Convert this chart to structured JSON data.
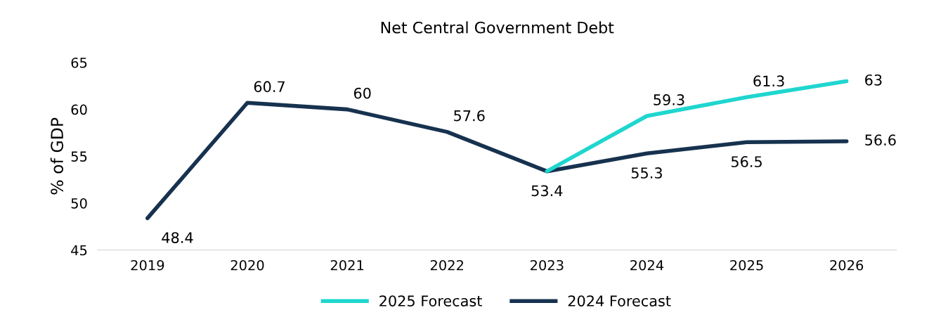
{
  "chart_data": {
    "type": "line",
    "title": "Net Central Government Debt",
    "ylabel": "% of GDP",
    "categories": [
      "2019",
      "2020",
      "2021",
      "2022",
      "2023",
      "2024",
      "2025",
      "2026"
    ],
    "series": [
      {
        "name": "2025 Forecast",
        "color": "#1fd6cf",
        "values": [
          null,
          null,
          null,
          null,
          53.4,
          59.3,
          61.3,
          63
        ],
        "value_labels": [
          null,
          null,
          null,
          null,
          null,
          "59.3",
          "61.3",
          "63"
        ]
      },
      {
        "name": "2024 Forecast",
        "color": "#17324f",
        "values": [
          48.4,
          60.7,
          60,
          57.6,
          53.4,
          55.3,
          56.5,
          56.6
        ],
        "value_labels": [
          "48.4",
          "60.7",
          "60",
          "57.6",
          "53.4",
          "55.3",
          "56.5",
          "56.6"
        ]
      }
    ],
    "ylim": [
      45,
      65
    ],
    "yticks": [
      45,
      50,
      55,
      60,
      65
    ],
    "grid": false,
    "legend": "bottom",
    "marker": "none",
    "line_style": "solid"
  }
}
